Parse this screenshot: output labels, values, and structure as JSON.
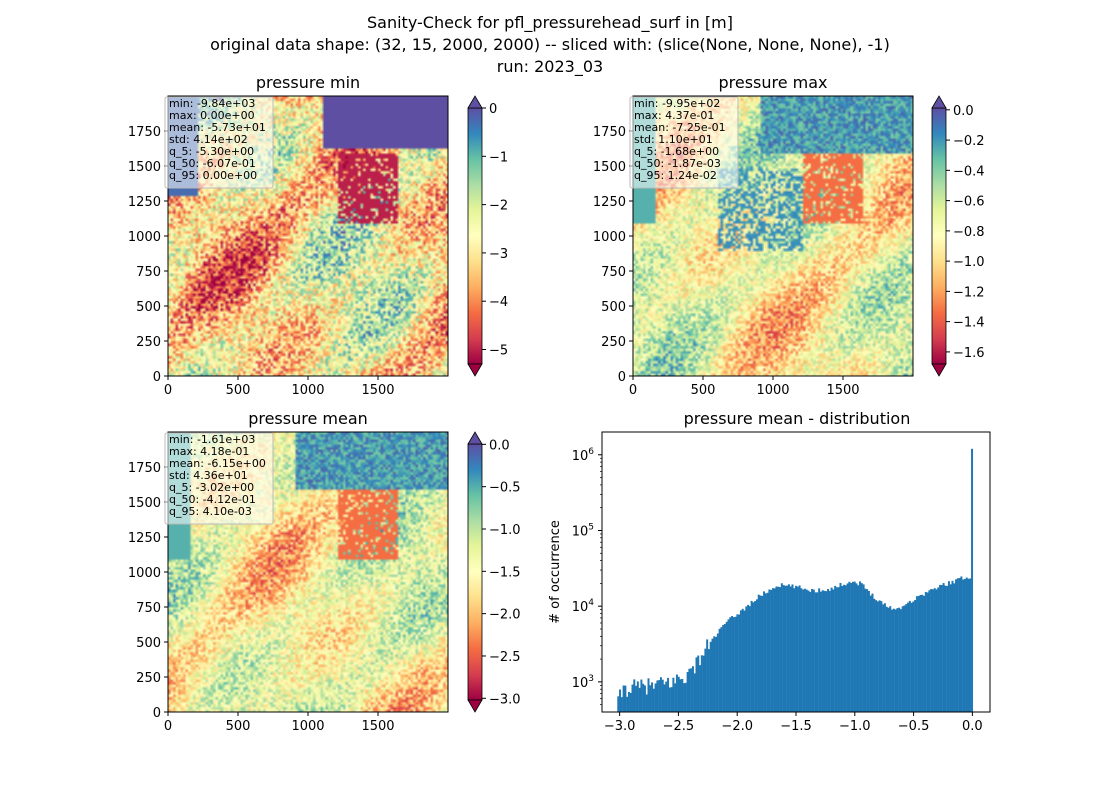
{
  "figure": {
    "title_lines": [
      "Sanity-Check for pfl_pressurehead_surf in [m]",
      "original data shape: (32, 15, 2000, 2000) -- sliced with: (slice(None, None, None), -1)",
      "run: 2023_03"
    ]
  },
  "colors": {
    "cmap": [
      "#9e0142",
      "#d53e4f",
      "#f46d43",
      "#fdae61",
      "#fee08b",
      "#ffffbf",
      "#e6f598",
      "#abdda4",
      "#66c2a5",
      "#3288bd",
      "#5e4fa2"
    ],
    "histogram_bar": "#1f77b4"
  },
  "chart_data": [
    {
      "type": "heatmap",
      "title": "pressure min",
      "x_ticks": [
        "0",
        "500",
        "1000",
        "1500"
      ],
      "x_tick_values": [
        0,
        500,
        1000,
        1500
      ],
      "y_ticks": [
        "0",
        "250",
        "500",
        "750",
        "1000",
        "1250",
        "1500",
        "1750"
      ],
      "y_tick_values": [
        0,
        250,
        500,
        750,
        1000,
        1250,
        1500,
        1750
      ],
      "xlim": [
        0,
        2000
      ],
      "ylim": [
        0,
        2000
      ],
      "colorbar": {
        "range": [
          -5.3,
          0
        ],
        "ticks": [
          "0",
          "−1",
          "−2",
          "−3",
          "−4",
          "−5"
        ],
        "tick_values": [
          0,
          -1,
          -2,
          -3,
          -4,
          -5
        ],
        "extend": "both"
      },
      "stats": [
        "min: -9.84e+03",
        "max: 0.00e+00",
        "mean: -5.73e+01",
        "std: 4.14e+02",
        "q_5: -5.30e+00",
        "q_50: -6.07e-01",
        "q_95: 0.00e+00"
      ]
    },
    {
      "type": "heatmap",
      "title": "pressure max",
      "x_ticks": [
        "0",
        "500",
        "1000",
        "1500"
      ],
      "x_tick_values": [
        0,
        500,
        1000,
        1500
      ],
      "y_ticks": [
        "0",
        "250",
        "500",
        "750",
        "1000",
        "1250",
        "1500",
        "1750"
      ],
      "y_tick_values": [
        0,
        250,
        500,
        750,
        1000,
        1250,
        1500,
        1750
      ],
      "xlim": [
        0,
        2000
      ],
      "ylim": [
        0,
        2000
      ],
      "colorbar": {
        "range": [
          -1.68,
          0.012
        ],
        "ticks": [
          "0.0",
          "−0.2",
          "−0.4",
          "−0.6",
          "−0.8",
          "−1.0",
          "−1.2",
          "−1.4",
          "−1.6"
        ],
        "tick_values": [
          0,
          -0.2,
          -0.4,
          -0.6,
          -0.8,
          -1.0,
          -1.2,
          -1.4,
          -1.6
        ],
        "extend": "both"
      },
      "stats": [
        "min: -9.95e+02",
        "max: 4.37e-01",
        "mean: -7.25e-01",
        "std: 1.10e+01",
        "q_5: -1.68e+00",
        "q_50: -1.87e-03",
        "q_95: 1.24e-02"
      ]
    },
    {
      "type": "heatmap",
      "title": "pressure mean",
      "x_ticks": [
        "0",
        "500",
        "1000",
        "1500"
      ],
      "x_tick_values": [
        0,
        500,
        1000,
        1500
      ],
      "y_ticks": [
        "0",
        "250",
        "500",
        "750",
        "1000",
        "1250",
        "1500",
        "1750"
      ],
      "y_tick_values": [
        0,
        250,
        500,
        750,
        1000,
        1250,
        1500,
        1750
      ],
      "xlim": [
        0,
        2000
      ],
      "ylim": [
        0,
        2000
      ],
      "colorbar": {
        "range": [
          -3.02,
          0.004
        ],
        "ticks": [
          "0.0",
          "−0.5",
          "−1.0",
          "−1.5",
          "−2.0",
          "−2.5",
          "−3.0"
        ],
        "tick_values": [
          0,
          -0.5,
          -1.0,
          -1.5,
          -2.0,
          -2.5,
          -3.0
        ],
        "extend": "both"
      },
      "stats": [
        "min: -1.61e+03",
        "max: 4.18e-01",
        "mean: -6.15e+00",
        "std: 4.36e+01",
        "q_5: -3.02e+00",
        "q_50: -4.12e-01",
        "q_95: 4.10e-03"
      ]
    },
    {
      "type": "bar",
      "title": "pressure mean - distribution",
      "ylabel": "# of occurrence",
      "yscale": "log",
      "xlim": [
        -3.15,
        0.15
      ],
      "ylim": [
        400,
        2000000
      ],
      "x_ticks": [
        "−3.0",
        "−2.5",
        "−2.0",
        "−1.5",
        "−1.0",
        "−0.5",
        "0.0"
      ],
      "x_tick_values": [
        -3.0,
        -2.5,
        -2.0,
        -1.5,
        -1.0,
        -0.5,
        0.0
      ],
      "y_ticks": [
        {
          "base": "10",
          "exp": "3",
          "value": 1000
        },
        {
          "base": "10",
          "exp": "4",
          "value": 10000
        },
        {
          "base": "10",
          "exp": "5",
          "value": 100000
        },
        {
          "base": "10",
          "exp": "6",
          "value": 1000000
        }
      ],
      "bins": {
        "start": -3.02,
        "end": 0.004
      },
      "anchors": [
        {
          "x": -3.01,
          "y": 550
        },
        {
          "x": -2.97,
          "y": 800
        },
        {
          "x": -2.85,
          "y": 850
        },
        {
          "x": -2.7,
          "y": 900
        },
        {
          "x": -2.55,
          "y": 1000
        },
        {
          "x": -2.4,
          "y": 1300
        },
        {
          "x": -2.25,
          "y": 3000
        },
        {
          "x": -2.1,
          "y": 6000
        },
        {
          "x": -1.95,
          "y": 9000
        },
        {
          "x": -1.8,
          "y": 14000
        },
        {
          "x": -1.65,
          "y": 19000
        },
        {
          "x": -1.5,
          "y": 18000
        },
        {
          "x": -1.35,
          "y": 16000
        },
        {
          "x": -1.2,
          "y": 17000
        },
        {
          "x": -1.05,
          "y": 21000
        },
        {
          "x": -0.95,
          "y": 20000
        },
        {
          "x": -0.85,
          "y": 14000
        },
        {
          "x": -0.75,
          "y": 10500
        },
        {
          "x": -0.65,
          "y": 9000
        },
        {
          "x": -0.55,
          "y": 11000
        },
        {
          "x": -0.4,
          "y": 15000
        },
        {
          "x": -0.25,
          "y": 19000
        },
        {
          "x": -0.1,
          "y": 23000
        },
        {
          "x": -0.01,
          "y": 25000
        }
      ],
      "peak": {
        "x": 0.0,
        "y": 1200000
      }
    }
  ]
}
